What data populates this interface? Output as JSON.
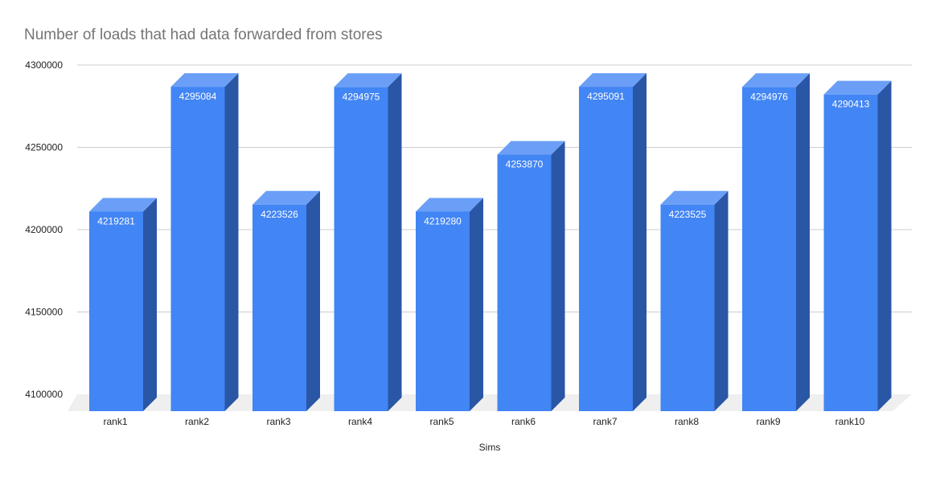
{
  "chart_data": {
    "type": "bar",
    "title": "Number of loads that had data forwarded from stores",
    "xlabel": "Sims",
    "ylabel": "",
    "categories": [
      "rank1",
      "rank2",
      "rank3",
      "rank4",
      "rank5",
      "rank6",
      "rank7",
      "rank8",
      "rank9",
      "rank10"
    ],
    "series": [
      {
        "values": [
          4219281,
          4295084,
          4223526,
          4294975,
          4219280,
          4253870,
          4295091,
          4223525,
          4294976,
          4290413
        ]
      }
    ],
    "value_labels": [
      "4219281",
      "4295084",
      "4223526",
      "4294975",
      "4219280",
      "4253870",
      "4295091",
      "4223525",
      "4294976",
      "4290413"
    ],
    "ylim": [
      4100000,
      4300000
    ],
    "yticks": [
      4100000,
      4150000,
      4200000,
      4250000,
      4300000
    ],
    "ytick_labels": [
      "4100000",
      "4150000",
      "4200000",
      "4250000",
      "4300000"
    ],
    "grid": true,
    "legend": "none",
    "style": "3d-bar",
    "colors": {
      "bar_front": "#4285f4",
      "bar_top": "#6b9ff7",
      "bar_side": "#2a56a6",
      "gridline": "#cccccc",
      "floor": "#efefef",
      "title": "#757575",
      "text": "#222222",
      "data_label": "#ffffff"
    }
  }
}
